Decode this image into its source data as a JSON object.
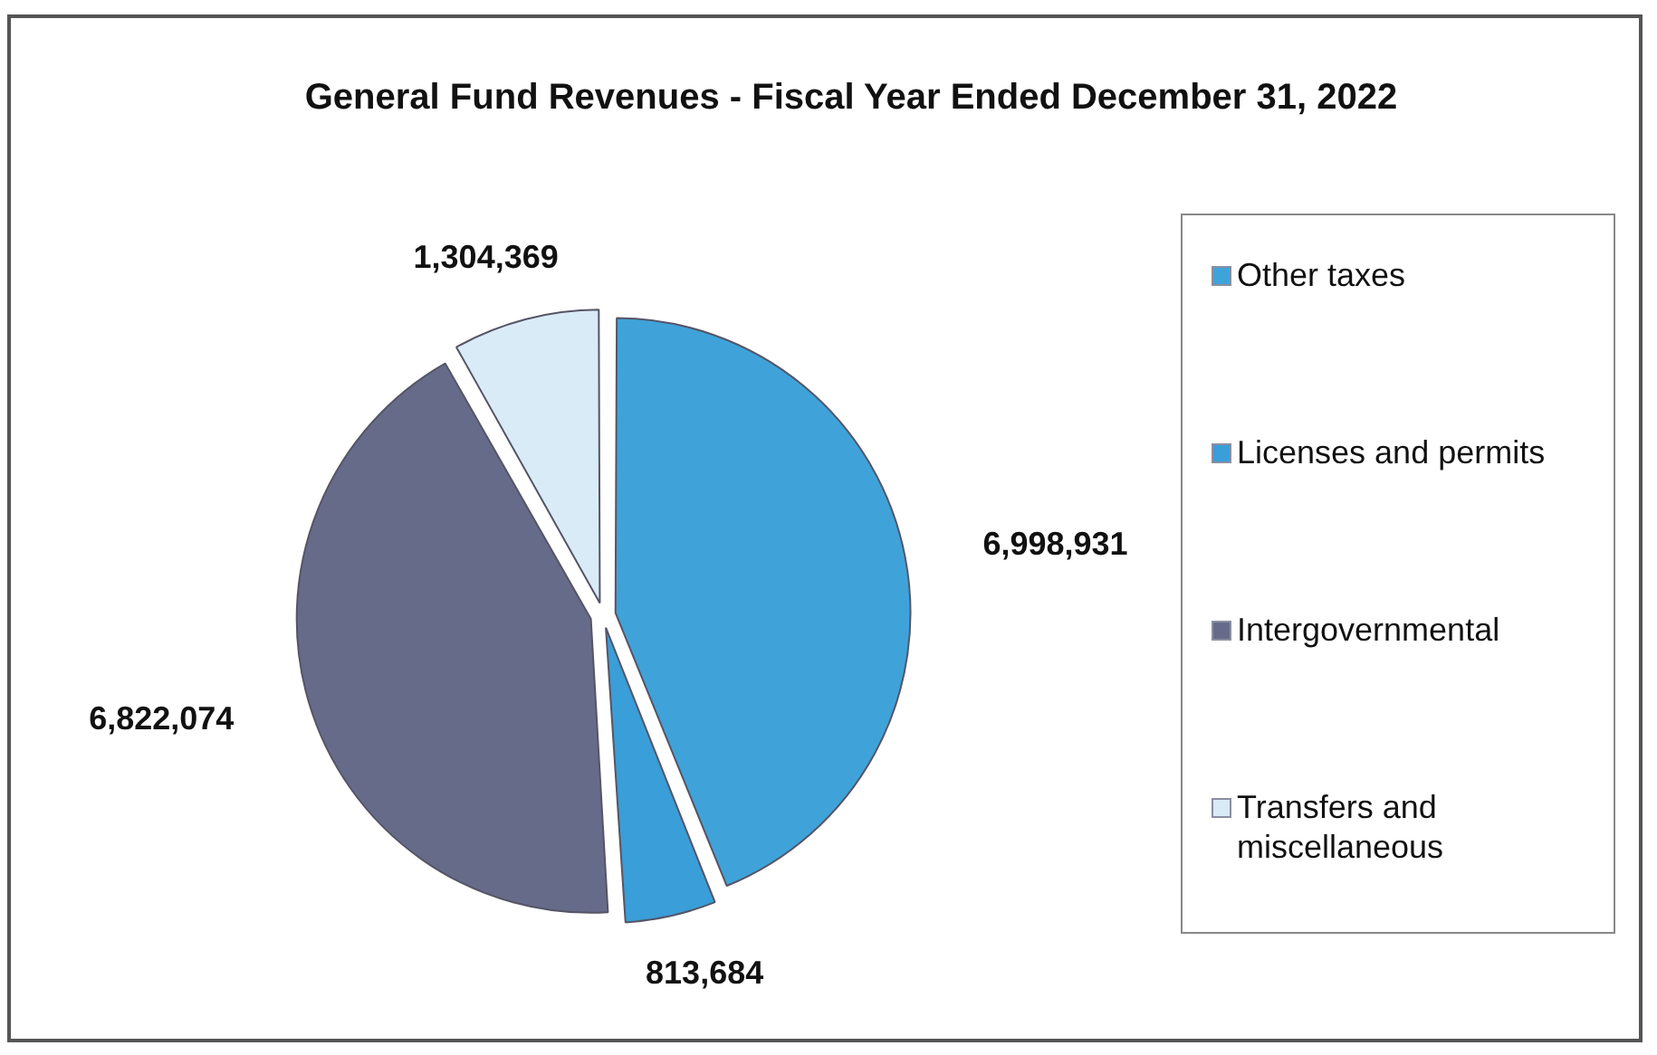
{
  "chart_data": {
    "type": "pie",
    "title": "General Fund Revenues - Fiscal Year Ended December 31, 2022",
    "categories": [
      "Other taxes",
      "Licenses and permits",
      "Intergovernmental",
      "Transfers and miscellaneous"
    ],
    "values": [
      6998931,
      813684,
      6822074,
      1304369
    ],
    "colors": [
      "#3fa3da",
      "#3a9ed8",
      "#676b8a",
      "#d9ebf6"
    ],
    "value_labels": [
      "6,998,931",
      "813,684",
      "6,822,074",
      "1,304,369"
    ],
    "legend": "right"
  }
}
